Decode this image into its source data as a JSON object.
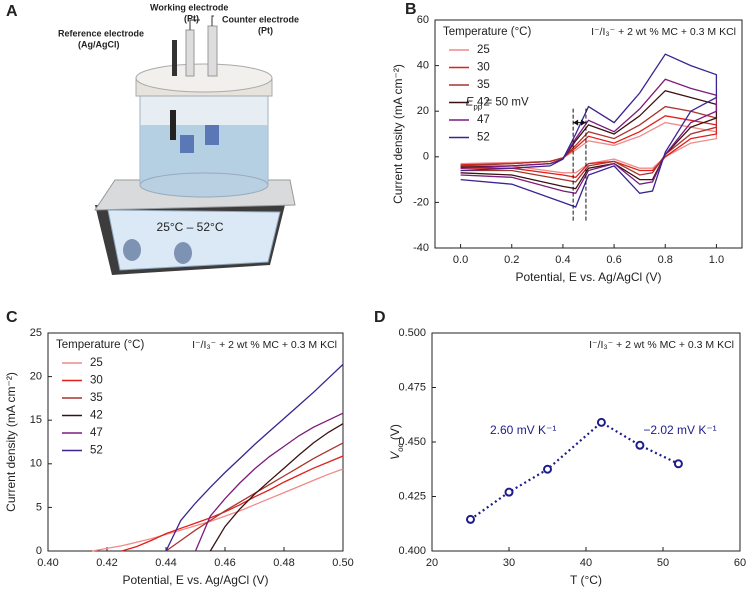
{
  "illustration": {
    "panel_label": "A",
    "working_label": "Working electrode",
    "working_sub": "(Pt)",
    "reference_label": "Reference electrode",
    "reference_sub": "(Ag/AgCl)",
    "counter_label": "Counter electrode",
    "counter_sub": "(Pt)",
    "display": "25°C – 52°C"
  },
  "chart_data": [
    {
      "type": "line",
      "panel_label": "B",
      "subtitle": "I⁻/I₃⁻ + 2 wt % MC + 0.3 M KCl",
      "legend_title": "Temperature (°C)",
      "legend": "upper left",
      "xlabel": "Potential, E vs. Ag/AgCl (V)",
      "ylabel": "Current density (mA cm⁻²)",
      "xlim": [
        -0.1,
        1.1
      ],
      "xticks": [
        {
          "value": 0,
          "label": "0.0"
        },
        0.2,
        0.4,
        0.6,
        0.8,
        {
          "value": 1,
          "label": "1.0"
        }
      ],
      "ylim": [
        -40,
        60
      ],
      "yticks": [
        -40,
        -20,
        0,
        20,
        40,
        60
      ],
      "grid": false,
      "annotation": [
        "E",
        "pp",
        " = 50 mV"
      ],
      "vlines": [
        0.44,
        0.49
      ],
      "x": [
        0,
        0.2,
        0.35,
        0.4,
        0.45,
        0.5,
        0.6,
        0.7,
        0.8,
        0.9,
        1,
        1,
        0.9,
        0.8,
        0.75,
        0.7,
        0.6,
        0.5,
        0.45,
        0.4,
        0.2,
        0
      ],
      "series": [
        {
          "name": "25",
          "color": "#f28a8a",
          "values": [
            -3,
            -2.5,
            -2,
            -0.5,
            3,
            7,
            5,
            9,
            15,
            13,
            11,
            8,
            6,
            0,
            -5,
            -5,
            -1,
            -3,
            -7,
            -7,
            -4,
            -4
          ]
        },
        {
          "name": "30",
          "color": "#e0201b",
          "values": [
            -3.5,
            -3,
            -2,
            -0.5,
            4,
            9,
            6,
            11,
            18,
            16,
            14,
            10,
            8,
            0,
            -6,
            -6,
            -2,
            -3,
            -9,
            -8,
            -5,
            -5
          ]
        },
        {
          "name": "35",
          "color": "#a8342e",
          "values": [
            -4,
            -3,
            -2,
            -0.5,
            5,
            11,
            8,
            14,
            22,
            20,
            17,
            13,
            10,
            1,
            -7,
            -8,
            -2,
            -4,
            -11,
            -10,
            -6,
            -6
          ]
        },
        {
          "name": "42",
          "color": "#3b1212",
          "values": [
            -4.5,
            -4,
            -3,
            -1,
            7,
            14,
            10,
            18,
            29,
            26,
            23,
            17,
            13,
            1,
            -10,
            -10,
            -3,
            -5,
            -14,
            -13,
            -8,
            -7
          ]
        },
        {
          "name": "47",
          "color": "#7d1a7d",
          "values": [
            -5,
            -4,
            -3,
            -1,
            8,
            16,
            11,
            21,
            34,
            30,
            27,
            20,
            15,
            1,
            -11,
            -12,
            -3,
            -6,
            -16,
            -15,
            -9,
            -8
          ]
        },
        {
          "name": "52",
          "color": "#3b2391",
          "values": [
            -6,
            -5,
            -4,
            -1,
            10,
            22,
            15,
            28,
            45,
            40,
            36,
            26,
            20,
            2,
            -15,
            -16,
            -4,
            -8,
            -22,
            -20,
            -12,
            -10
          ]
        }
      ]
    },
    {
      "type": "line",
      "panel_label": "C",
      "subtitle": "I⁻/I₃⁻ + 2 wt % MC + 0.3 M KCl",
      "legend_title": "Temperature (°C)",
      "legend": "upper left",
      "xlabel": "Potential, E vs. Ag/AgCl (V)",
      "ylabel": "Current density (mA cm⁻²)",
      "xlim": [
        0.4,
        0.5
      ],
      "xticks": [
        {
          "value": 0.4,
          "label": "0.40"
        },
        0.42,
        0.44,
        0.46,
        0.48,
        {
          "value": 0.5,
          "label": "0.50"
        }
      ],
      "ylim": [
        0,
        25
      ],
      "yticks": [
        0,
        5,
        10,
        15,
        20,
        25
      ],
      "grid": false,
      "x": [
        0.415,
        0.42,
        0.425,
        0.43,
        0.435,
        0.44,
        0.445,
        0.45,
        0.455,
        0.46,
        0.465,
        0.47,
        0.475,
        0.48,
        0.485,
        0.49,
        0.495,
        0.5
      ],
      "series": [
        {
          "name": "25",
          "color": "#f28a8a",
          "values": [
            0,
            0.3,
            0.6,
            1,
            1.4,
            1.9,
            2.4,
            2.9,
            3.4,
            4,
            4.6,
            5.3,
            6,
            6.7,
            7.4,
            8.1,
            8.8,
            9.4
          ]
        },
        {
          "name": "30",
          "color": "#e0201b",
          "values": [
            null,
            null,
            0,
            0.5,
            1.2,
            2,
            2.6,
            3.2,
            3.8,
            4.5,
            5.3,
            6.2,
            7,
            7.9,
            8.7,
            9.5,
            10.2,
            10.9
          ]
        },
        {
          "name": "35",
          "color": "#a8342e",
          "values": [
            null,
            null,
            null,
            null,
            null,
            0,
            1.2,
            2.4,
            3.5,
            4.6,
            5.6,
            6.6,
            7.6,
            8.6,
            9.6,
            10.6,
            11.5,
            12.4
          ]
        },
        {
          "name": "42",
          "color": "#3b1212",
          "values": [
            null,
            null,
            null,
            null,
            null,
            null,
            null,
            null,
            0,
            2.8,
            4.8,
            6.5,
            8,
            9.5,
            11,
            12.4,
            13.6,
            14.6
          ]
        },
        {
          "name": "47",
          "color": "#7d1a7d",
          "values": [
            null,
            null,
            null,
            null,
            null,
            null,
            null,
            0,
            4,
            6,
            7.8,
            9.4,
            10.8,
            12,
            13.2,
            14.2,
            15,
            15.8
          ]
        },
        {
          "name": "52",
          "color": "#3b2391",
          "values": [
            null,
            null,
            null,
            null,
            null,
            0,
            3.5,
            5.5,
            7.3,
            9,
            10.6,
            12.2,
            13.7,
            15.2,
            16.7,
            18.2,
            19.8,
            21.4
          ]
        }
      ]
    },
    {
      "type": "scatter",
      "panel_label": "D",
      "subtitle": "I⁻/I₃⁻ + 2 wt % MC + 0.3 M KCl",
      "xlabel": "T (°C)",
      "ylabel": [
        "V",
        "oc",
        " (V)"
      ],
      "xlim": [
        20,
        60
      ],
      "xticks": [
        20,
        30,
        40,
        50,
        60
      ],
      "ylim": [
        0.4,
        0.5
      ],
      "yticks": [
        {
          "value": 0.4,
          "label": "0.400"
        },
        0.425,
        {
          "value": 0.45,
          "label": "0.450"
        },
        0.475,
        {
          "value": 0.5,
          "label": "0.500"
        }
      ],
      "grid": false,
      "color": "#1c1c8c",
      "annotations": [
        "2.60 mV K⁻¹",
        "−2.02 mV K⁻¹"
      ],
      "x": [
        25,
        30,
        35,
        42,
        47,
        52
      ],
      "values": [
        0.4145,
        0.427,
        0.4375,
        0.459,
        0.4485,
        0.44
      ]
    }
  ]
}
